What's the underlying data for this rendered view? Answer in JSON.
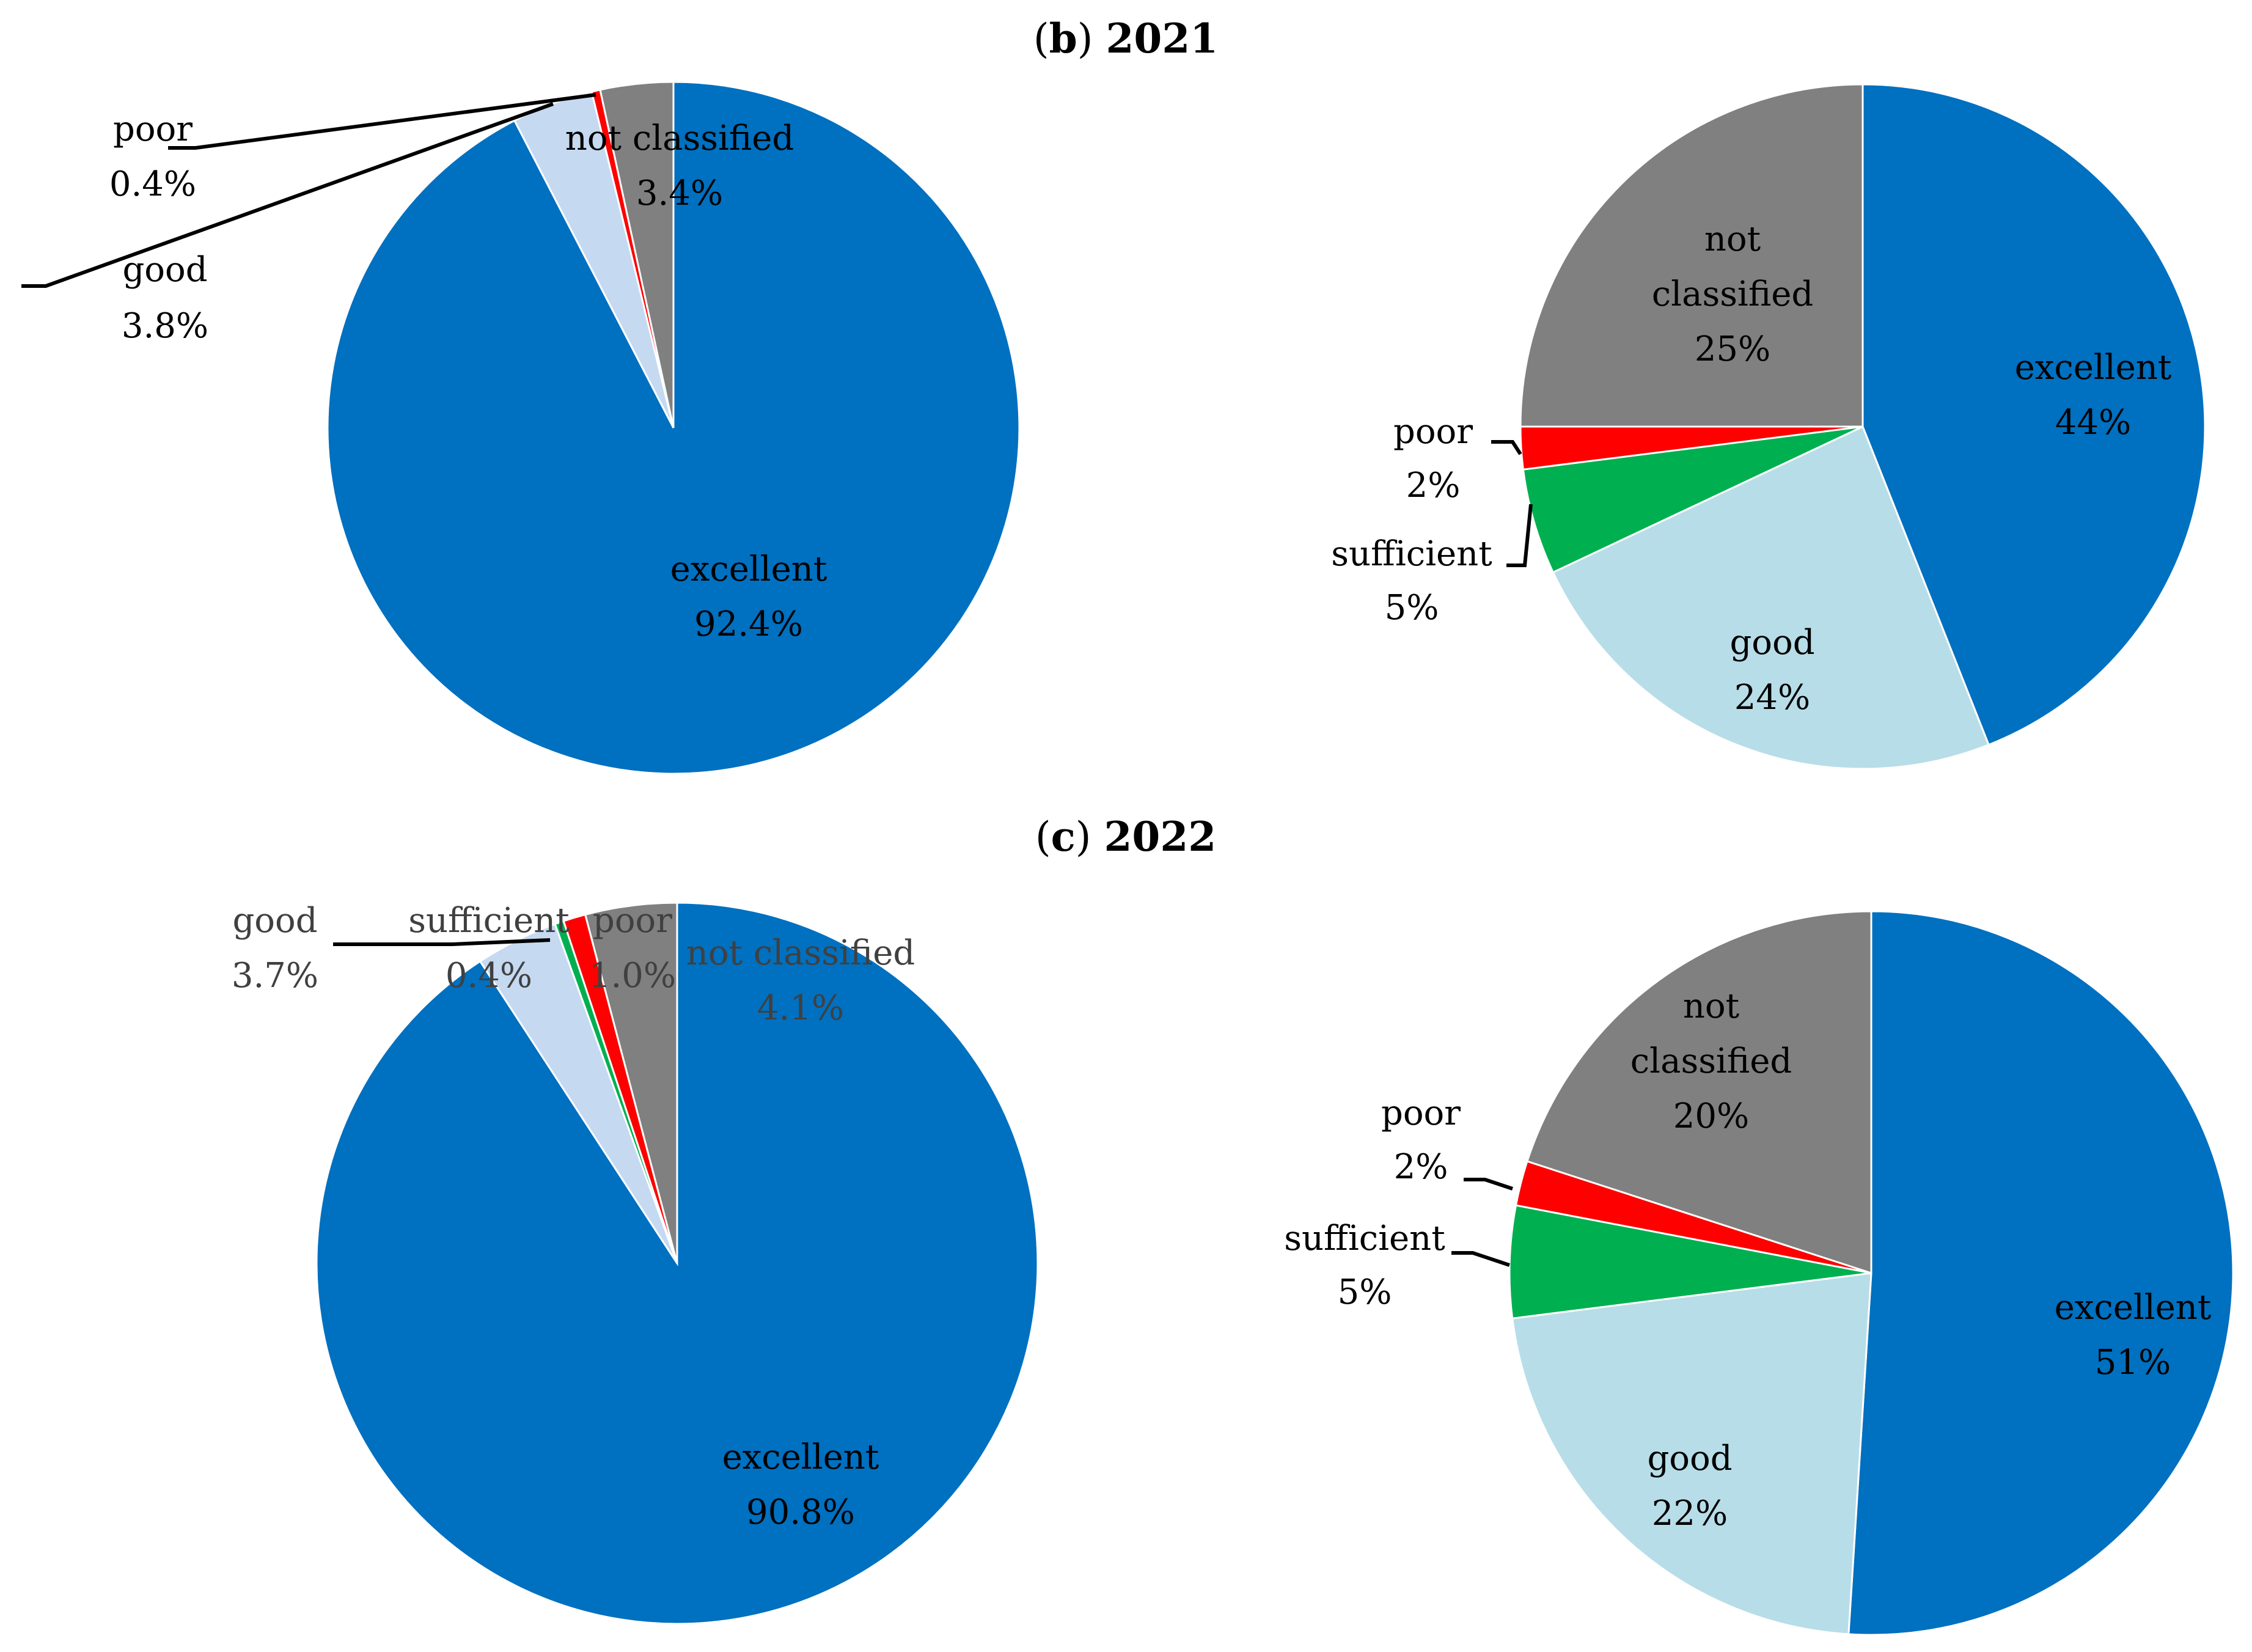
{
  "panels": [
    {
      "letter": "b",
      "year": "2021"
    },
    {
      "letter": "c",
      "year": "2022"
    }
  ],
  "chart_data": [
    {
      "type": "pie",
      "panel": "(b) 2021",
      "position": "top-left",
      "slices": [
        {
          "label": "excellent",
          "value": 92.4,
          "text": "92.4%",
          "color": "#0070C0"
        },
        {
          "label": "good",
          "value": 3.8,
          "text": "3.8%",
          "color": "#C5D9F1"
        },
        {
          "label": "poor",
          "value": 0.4,
          "text": "0.4%",
          "color": "#FF0000"
        },
        {
          "label": "not classified",
          "value": 3.4,
          "text": "3.4%",
          "color": "#808080"
        }
      ]
    },
    {
      "type": "pie",
      "panel": "(b) 2021",
      "position": "top-right",
      "slices": [
        {
          "label": "excellent",
          "value": 44,
          "text": "44%",
          "color": "#0070C0"
        },
        {
          "label": "good",
          "value": 24,
          "text": "24%",
          "color": "#B7DDE8"
        },
        {
          "label": "sufficient",
          "value": 5,
          "text": "5%",
          "color": "#00B050"
        },
        {
          "label": "poor",
          "value": 2,
          "text": "2%",
          "color": "#FF0000"
        },
        {
          "label": "not classified",
          "value": 25,
          "text": "25%",
          "color": "#808080"
        }
      ]
    },
    {
      "type": "pie",
      "panel": "(c) 2022",
      "position": "bottom-left",
      "slices": [
        {
          "label": "excellent",
          "value": 90.8,
          "text": "90.8%",
          "color": "#0070C0"
        },
        {
          "label": "good",
          "value": 3.7,
          "text": "3.7%",
          "color": "#C5D9F1"
        },
        {
          "label": "sufficient",
          "value": 0.4,
          "text": "0.4%",
          "color": "#00B050"
        },
        {
          "label": "poor",
          "value": 1.0,
          "text": "1.0%",
          "color": "#FF0000"
        },
        {
          "label": "not classified",
          "value": 4.1,
          "text": "4.1%",
          "color": "#808080"
        }
      ]
    },
    {
      "type": "pie",
      "panel": "(c) 2022",
      "position": "bottom-right",
      "slices": [
        {
          "label": "excellent",
          "value": 51,
          "text": "51%",
          "color": "#0070C0"
        },
        {
          "label": "good",
          "value": 22,
          "text": "22%",
          "color": "#B7DDE8"
        },
        {
          "label": "sufficient",
          "value": 5,
          "text": "5%",
          "color": "#00B050"
        },
        {
          "label": "poor",
          "value": 2,
          "text": "2%",
          "color": "#FF0000"
        },
        {
          "label": "not classified",
          "value": 20,
          "text": "20%",
          "color": "#808080"
        }
      ]
    }
  ]
}
